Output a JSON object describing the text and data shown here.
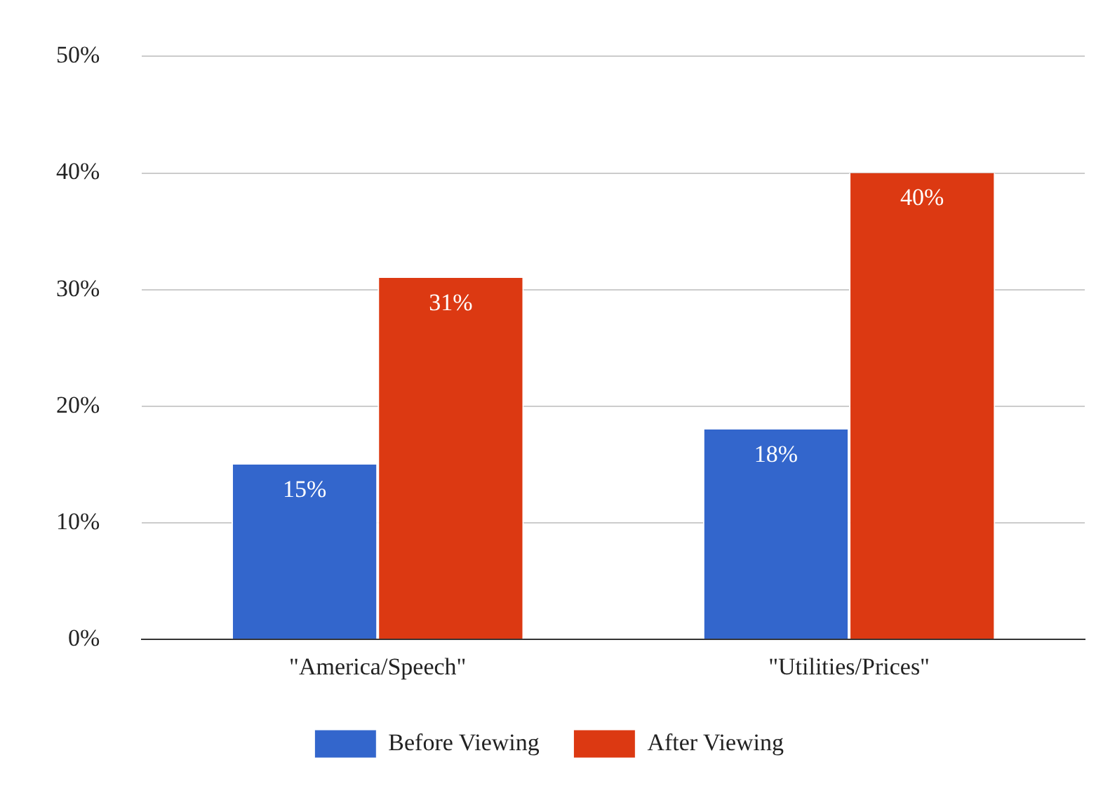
{
  "chart_data": {
    "type": "bar",
    "categories": [
      "\"America/Speech\"",
      "\"Utilities/Prices\""
    ],
    "series": [
      {
        "name": "Before Viewing",
        "color": "#3366cc",
        "values": [
          15,
          18
        ],
        "value_labels": [
          "15%",
          "18%"
        ]
      },
      {
        "name": "After Viewing",
        "color": "#dc3912",
        "values": [
          31,
          40
        ],
        "value_labels": [
          "31%",
          "40%"
        ]
      }
    ],
    "ylim": [
      0,
      50
    ],
    "yticks": [
      {
        "value": 0,
        "label": "0%"
      },
      {
        "value": 10,
        "label": "10%"
      },
      {
        "value": 20,
        "label": "20%"
      },
      {
        "value": 30,
        "label": "30%"
      },
      {
        "value": 40,
        "label": "40%"
      },
      {
        "value": 50,
        "label": "50%"
      }
    ],
    "grid": "y",
    "legend": "bottom"
  }
}
